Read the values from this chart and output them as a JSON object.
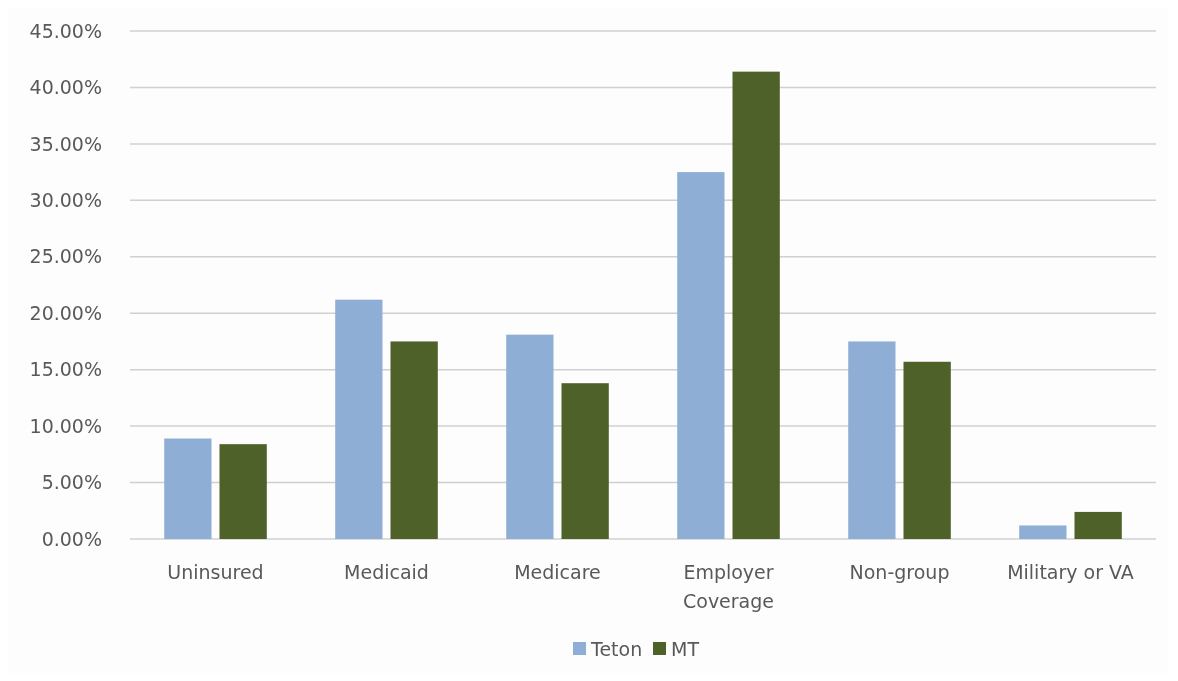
{
  "chart_data": {
    "type": "bar",
    "categories": [
      "Uninsured",
      "Medicaid",
      "Medicare",
      "Employer Coverage",
      "Non-group",
      "Military or VA"
    ],
    "series": [
      {
        "name": "Teton",
        "color": "#8faed6",
        "values": [
          8.9,
          21.2,
          18.1,
          32.5,
          17.5,
          1.2
        ]
      },
      {
        "name": "MT",
        "color": "#4d6128",
        "values": [
          8.4,
          17.5,
          13.8,
          41.4,
          15.7,
          2.4
        ]
      }
    ],
    "ylim": [
      0,
      45
    ],
    "yticks": [
      {
        "value": 0,
        "label": "0.00%"
      },
      {
        "value": 5,
        "label": "5.00%"
      },
      {
        "value": 10,
        "label": "10.00%"
      },
      {
        "value": 15,
        "label": "15.00%"
      },
      {
        "value": 20,
        "label": "20.00%"
      },
      {
        "value": 25,
        "label": "25.00%"
      },
      {
        "value": 30,
        "label": "30.00%"
      },
      {
        "value": 35,
        "label": "35.00%"
      },
      {
        "value": 40,
        "label": "40.00%"
      },
      {
        "value": 45,
        "label": "45.00%"
      }
    ],
    "grid": "y",
    "legend": "bottom"
  }
}
